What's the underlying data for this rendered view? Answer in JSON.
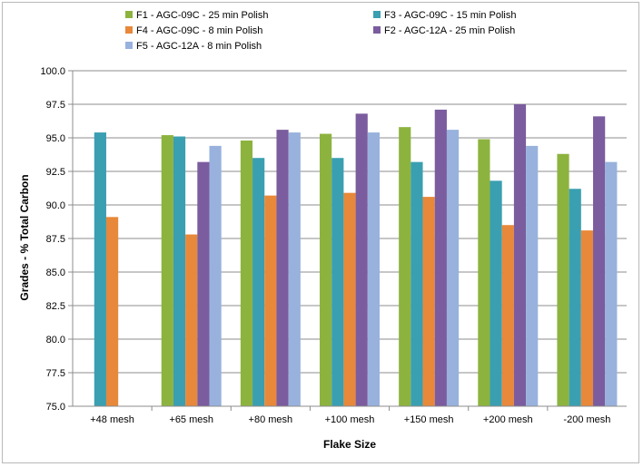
{
  "chart_data": {
    "type": "bar",
    "title": "",
    "xlabel": "Flake Size",
    "ylabel": "Grades - % Total Carbon",
    "ylim": [
      75.0,
      100.0
    ],
    "ytick_step": 2.5,
    "yticks": [
      "75.0",
      "77.5",
      "80.0",
      "82.5",
      "85.0",
      "87.5",
      "90.0",
      "92.5",
      "95.0",
      "97.5",
      "100.0"
    ],
    "grid": true,
    "legend_position": "top",
    "categories": [
      "+48 mesh",
      "+65 mesh",
      "+80 mesh",
      "+100 mesh",
      "+150 mesh",
      "+200 mesh",
      "-200 mesh"
    ],
    "series": [
      {
        "name": "F1 - AGC-09C - 25 min Polish",
        "color": "#8db33f",
        "values": [
          null,
          95.2,
          94.8,
          95.3,
          95.8,
          94.9,
          93.8
        ]
      },
      {
        "name": "F3 - AGC-09C - 15 min Polish",
        "color": "#3a9fb1",
        "values": [
          95.4,
          95.1,
          93.5,
          93.5,
          93.2,
          91.8,
          91.2
        ]
      },
      {
        "name": "F4 - AGC-09C - 8 min Polish",
        "color": "#e8883a",
        "values": [
          89.1,
          87.8,
          90.7,
          90.9,
          90.6,
          88.5,
          88.1
        ]
      },
      {
        "name": "F2 - AGC-12A - 25 min Polish",
        "color": "#7b5c9e",
        "values": [
          null,
          93.2,
          95.6,
          96.8,
          97.1,
          97.5,
          96.6
        ]
      },
      {
        "name": "F5 - AGC-12A - 8 min Polish",
        "color": "#98b2dd",
        "values": [
          null,
          94.4,
          95.4,
          95.4,
          95.6,
          94.4,
          93.2
        ]
      }
    ]
  }
}
